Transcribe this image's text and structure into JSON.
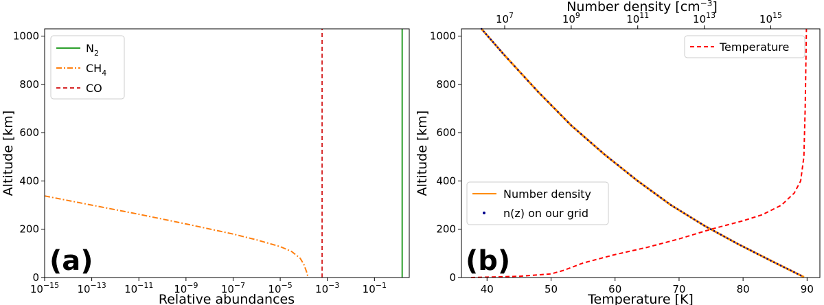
{
  "chart_data": [
    {
      "type": "line",
      "panel_label": "(a)",
      "xlabel": "Relative abundances",
      "ylabel": "Altitude [km]",
      "xscale": "log",
      "xlim": [
        1e-15,
        3
      ],
      "ylim": [
        0,
        1030
      ],
      "x_ticks": [
        {
          "value": 1e-15,
          "base": "10",
          "exp": "−15"
        },
        {
          "value": 1e-13,
          "base": "10",
          "exp": "−13"
        },
        {
          "value": 1e-11,
          "base": "10",
          "exp": "−11"
        },
        {
          "value": 1e-09,
          "base": "10",
          "exp": "−9"
        },
        {
          "value": 1e-07,
          "base": "10",
          "exp": "−7"
        },
        {
          "value": 1e-05,
          "base": "10",
          "exp": "−5"
        },
        {
          "value": 0.001,
          "base": "10",
          "exp": "−3"
        },
        {
          "value": 0.1,
          "base": "10",
          "exp": "−1"
        }
      ],
      "y_ticks": [
        0,
        200,
        400,
        600,
        800,
        1000
      ],
      "legend_position": "top-left",
      "series": [
        {
          "key": "n2",
          "name": "N",
          "name_sub": "2",
          "color": "#2ca02c",
          "style": "solid",
          "points": [
            [
              1.5,
              0
            ],
            [
              1.5,
              1030
            ]
          ]
        },
        {
          "key": "ch4",
          "name": "CH",
          "name_sub": "4",
          "color": "#ff7f0e",
          "style": "dashdot",
          "points": [
            [
              1e-15,
              338
            ],
            [
              1e-13,
              300
            ],
            [
              1e-11,
              262
            ],
            [
              1e-09,
              222
            ],
            [
              1e-07,
              180
            ],
            [
              1e-06,
              156
            ],
            [
              1e-05,
              128
            ],
            [
              3e-05,
              108
            ],
            [
              7e-05,
              80
            ],
            [
              0.0001,
              55
            ],
            [
              0.00013,
              25
            ],
            [
              0.00015,
              3
            ]
          ]
        },
        {
          "key": "co",
          "name": "CO",
          "name_sub": "",
          "color": "#d62728",
          "style": "dashed",
          "points": [
            [
              0.0006,
              0
            ],
            [
              0.0006,
              1030
            ]
          ]
        }
      ]
    },
    {
      "type": "line",
      "panel_label": "(b)",
      "xlabel": "Temperature [K]",
      "ylabel": "Altitude [km]",
      "top_xlabel_text": "Number density [cm",
      "top_xlabel_exp": "−3",
      "top_xlabel_close": "]",
      "xlim": [
        36,
        92
      ],
      "ylim": [
        0,
        1030
      ],
      "top_xscale": "log",
      "top_xlim": [
        500000.0,
        3e+16
      ],
      "x_ticks": [
        40,
        50,
        60,
        70,
        80,
        90
      ],
      "y_ticks": [
        0,
        200,
        400,
        600,
        800,
        1000
      ],
      "top_x_ticks": [
        {
          "value": 10000000.0,
          "base": "10",
          "exp": "7"
        },
        {
          "value": 1000000000.0,
          "base": "10",
          "exp": "9"
        },
        {
          "value": 100000000000.0,
          "base": "10",
          "exp": "11"
        },
        {
          "value": 10000000000000.0,
          "base": "10",
          "exp": "13"
        },
        {
          "value": 1000000000000000.0,
          "base": "10",
          "exp": "15"
        }
      ],
      "series": [
        {
          "key": "temp",
          "name": "Temperature",
          "color": "#ff0000",
          "style": "dashed",
          "axis": "bottom",
          "points": [
            [
              37.5,
              0
            ],
            [
              45,
              5
            ],
            [
              50,
              15
            ],
            [
              52,
              30
            ],
            [
              55,
              60
            ],
            [
              60,
              95
            ],
            [
              65,
              125
            ],
            [
              70,
              160
            ],
            [
              75,
              200
            ],
            [
              80,
              235
            ],
            [
              83,
              260
            ],
            [
              86,
              300
            ],
            [
              88,
              350
            ],
            [
              89,
              400
            ],
            [
              89.5,
              500
            ],
            [
              89.7,
              700
            ],
            [
              89.9,
              1030
            ]
          ]
        },
        {
          "key": "nd",
          "name": "Number density",
          "color": "#ff8c00",
          "style": "solid",
          "axis": "top",
          "points": [
            [
              2000000.0,
              1030
            ],
            [
              10000000.0,
              920
            ],
            [
              100000000.0,
              770
            ],
            [
              1000000000.0,
              630
            ],
            [
              10000000000.0,
              510
            ],
            [
              100000000000.0,
              400
            ],
            [
              1000000000000.0,
              300
            ],
            [
              10000000000000.0,
              215
            ],
            [
              100000000000000.0,
              140
            ],
            [
              1000000000000000.0,
              70
            ],
            [
              1e+16,
              2
            ]
          ]
        },
        {
          "key": "grid",
          "name": "n(z) on our grid",
          "color": "#00008b",
          "style": "dots",
          "axis": "top",
          "points": [
            [
              2000000.0,
              1030
            ],
            [
              10000000.0,
              920
            ],
            [
              100000000.0,
              770
            ],
            [
              1000000000.0,
              630
            ],
            [
              10000000000.0,
              510
            ],
            [
              100000000000.0,
              400
            ],
            [
              1000000000000.0,
              300
            ],
            [
              10000000000000.0,
              215
            ],
            [
              100000000000000.0,
              140
            ],
            [
              1000000000000000.0,
              70
            ],
            [
              1e+16,
              2
            ]
          ]
        }
      ],
      "legends": {
        "upper_right": [
          "temp"
        ],
        "lower_left": [
          "nd",
          "grid"
        ]
      }
    }
  ]
}
